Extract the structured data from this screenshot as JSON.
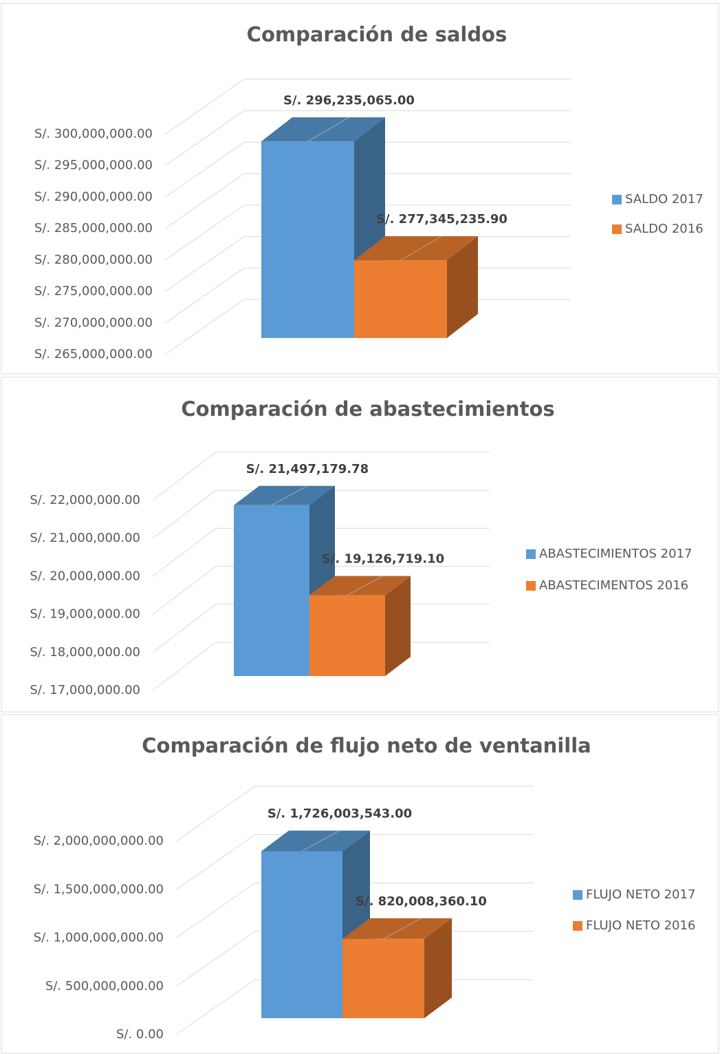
{
  "chart_data": [
    {
      "type": "bar3d",
      "title": "Comparación de saldos",
      "series": [
        {
          "name": "SALDO 2017",
          "color": "#5b9bd5",
          "values": [
            296235065.0
          ],
          "value_labels": [
            "S/. 296,235,065.00"
          ]
        },
        {
          "name": "SALDO 2016",
          "color": "#ed7d31",
          "values": [
            277345235.9
          ],
          "value_labels": [
            "S/. 277,345,235.90"
          ]
        }
      ],
      "ylim": [
        265000000,
        300000000
      ],
      "yticks": [
        {
          "value": 265000000,
          "label": "S/. 265,000,000.00"
        },
        {
          "value": 270000000,
          "label": "S/. 270,000,000.00"
        },
        {
          "value": 275000000,
          "label": "S/. 275,000,000.00"
        },
        {
          "value": 280000000,
          "label": "S/. 280,000,000.00"
        },
        {
          "value": 285000000,
          "label": "S/. 285,000,000.00"
        },
        {
          "value": 290000000,
          "label": "S/. 290,000,000.00"
        },
        {
          "value": 295000000,
          "label": "S/. 295,000,000.00"
        },
        {
          "value": 300000000,
          "label": "S/. 300,000,000.00"
        }
      ],
      "grid": true,
      "legend": "right"
    },
    {
      "type": "bar3d",
      "title": "Comparación de abastecimientos",
      "series": [
        {
          "name": "ABASTECIMIENTOS  2017",
          "color": "#5b9bd5",
          "values": [
            21497179.78
          ],
          "value_labels": [
            "S/. 21,497,179.78"
          ]
        },
        {
          "name": "ABASTECIMENTOS 2016",
          "color": "#ed7d31",
          "values": [
            19126719.1
          ],
          "value_labels": [
            "S/. 19,126,719.10"
          ]
        }
      ],
      "ylim": [
        17000000,
        22000000
      ],
      "yticks": [
        {
          "value": 17000000,
          "label": "S/. 17,000,000.00"
        },
        {
          "value": 18000000,
          "label": "S/. 18,000,000.00"
        },
        {
          "value": 19000000,
          "label": "S/. 19,000,000.00"
        },
        {
          "value": 20000000,
          "label": "S/. 20,000,000.00"
        },
        {
          "value": 21000000,
          "label": "S/. 21,000,000.00"
        },
        {
          "value": 22000000,
          "label": "S/. 22,000,000.00"
        }
      ],
      "grid": true,
      "legend": "right"
    },
    {
      "type": "bar3d",
      "title": "Comparación de flujo neto de ventanilla",
      "series": [
        {
          "name": "FLUJO NETO 2017",
          "color": "#5b9bd5",
          "values": [
            1726003543.0
          ],
          "value_labels": [
            "S/. 1,726,003,543.00"
          ]
        },
        {
          "name": "FLUJO NETO 2016",
          "color": "#ed7d31",
          "values": [
            820008360.1
          ],
          "value_labels": [
            "S/. 820,008,360.10"
          ]
        }
      ],
      "ylim": [
        0,
        2000000000
      ],
      "yticks": [
        {
          "value": 0,
          "label": "S/. 0.00"
        },
        {
          "value": 500000000,
          "label": "S/. 500,000,000.00"
        },
        {
          "value": 1000000000,
          "label": "S/. 1,000,000,000.00"
        },
        {
          "value": 1500000000,
          "label": "S/. 1,500,000,000.00"
        },
        {
          "value": 2000000000,
          "label": "S/. 2,000,000,000.00"
        }
      ],
      "grid": true,
      "legend": "right"
    }
  ]
}
